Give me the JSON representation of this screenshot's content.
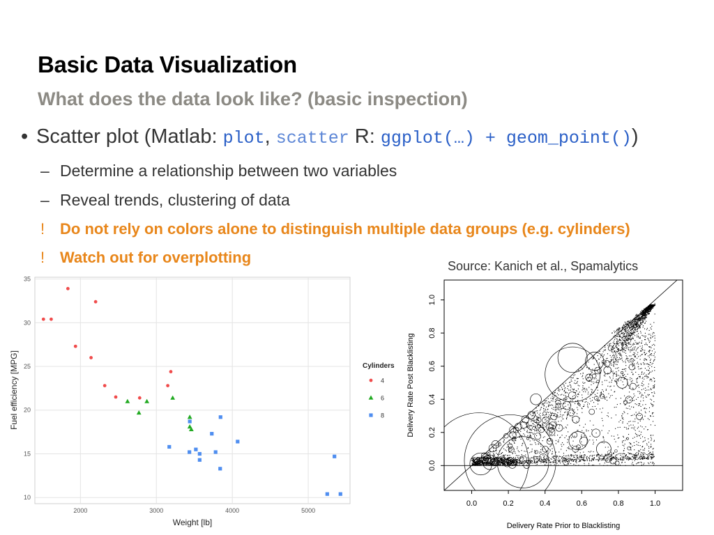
{
  "slide": {
    "title": "Basic Data Visualization",
    "subtitle": "What does the data look like? (basic inspection)",
    "bullet": {
      "prefix": "Scatter plot (Matlab: ",
      "code1": "plot",
      "sep1": ", ",
      "code2": "scatter",
      "mid": " R: ",
      "code3": "ggplot(…) + geom_point()",
      "suffix": ")"
    },
    "subbullets": [
      {
        "mark": "–",
        "text": "Determine a relationship between two variables"
      },
      {
        "mark": "–",
        "text": "Reveal trends, clustering of data"
      },
      {
        "mark": "!",
        "text": "Do not rely on colors alone to distinguish multiple data groups (e.g. cylinders)"
      },
      {
        "mark": "!",
        "text": "Watch out for overplotting"
      }
    ],
    "source": "Source: Kanich et al., Spamalytics"
  },
  "colors": {
    "group4": "#f04b4b",
    "group6": "#22aa22",
    "group8": "#4f8ef0",
    "warning": "#e8861a",
    "code": "#2a5fc7"
  },
  "chart_data": [
    {
      "type": "scatter",
      "title": "",
      "xlabel": "Weight [lb]",
      "ylabel": "Fuel efficiency [MPG]",
      "xlim": [
        1400,
        5550
      ],
      "ylim": [
        9.3,
        35.2
      ],
      "xticks": [
        2000,
        3000,
        4000,
        5000
      ],
      "yticks": [
        10,
        15,
        20,
        25,
        30,
        35
      ],
      "grid": true,
      "legend": {
        "title": "Cylinders",
        "position": "right"
      },
      "series": [
        {
          "name": "4",
          "marker": "circle",
          "points": [
            [
              1513,
              30.4
            ],
            [
              1615,
              30.4
            ],
            [
              1835,
              33.9
            ],
            [
              1935,
              27.3
            ],
            [
              2140,
              26.0
            ],
            [
              2200,
              32.4
            ],
            [
              2320,
              22.8
            ],
            [
              2465,
              21.5
            ],
            [
              2780,
              21.4
            ],
            [
              3150,
              22.8
            ],
            [
              3190,
              24.4
            ]
          ]
        },
        {
          "name": "6",
          "marker": "triangle",
          "points": [
            [
              2620,
              21.0
            ],
            [
              2770,
              19.7
            ],
            [
              2875,
              21.0
            ],
            [
              3215,
              21.4
            ],
            [
              3440,
              18.1
            ],
            [
              3440,
              19.2
            ],
            [
              3460,
              17.8
            ]
          ]
        },
        {
          "name": "8",
          "marker": "square",
          "points": [
            [
              3170,
              15.8
            ],
            [
              3435,
              15.2
            ],
            [
              3440,
              18.7
            ],
            [
              3520,
              15.5
            ],
            [
              3570,
              15.0
            ],
            [
              3570,
              14.3
            ],
            [
              3730,
              17.3
            ],
            [
              3780,
              15.2
            ],
            [
              3840,
              13.3
            ],
            [
              3845,
              19.2
            ],
            [
              4070,
              16.4
            ],
            [
              5250,
              10.4
            ],
            [
              5345,
              14.7
            ],
            [
              5424,
              10.4
            ]
          ]
        }
      ]
    },
    {
      "type": "scatter",
      "title": "",
      "xlabel": "Delivery Rate Prior to Blacklisting",
      "ylabel": "Delivery Rate Post Blacklisting",
      "xlim": [
        -0.15,
        1.15
      ],
      "ylim": [
        -0.15,
        1.12
      ],
      "xticks": [
        "0.0",
        "0.2",
        "0.4",
        "0.6",
        "0.8",
        "1.0"
      ],
      "yticks": [
        "0.0",
        "0.2",
        "0.4",
        "0.6",
        "0.8",
        "1.0"
      ],
      "reference_lines": [
        "y = x",
        "y = 0"
      ],
      "point_description": "dense cloud of small points concentrated near (0,0) and near (1,1), spread between the diagonal and y=0, with hollow circles of varying size",
      "circles": [
        {
          "x": 0.04,
          "y": 0.02,
          "r": 0.27
        },
        {
          "x": 0.21,
          "y": 0.03,
          "r": 0.25
        },
        {
          "x": 0.28,
          "y": 0.02,
          "r": 0.14
        },
        {
          "x": 0.55,
          "y": 0.55,
          "r": 0.15
        },
        {
          "x": 0.55,
          "y": 0.65,
          "r": 0.08
        },
        {
          "x": 0.67,
          "y": 0.63,
          "r": 0.05
        },
        {
          "x": 0.05,
          "y": 0.01,
          "r": 0.06
        },
        {
          "x": 0.1,
          "y": 0.02,
          "r": 0.04
        },
        {
          "x": 0.58,
          "y": 0.15,
          "r": 0.05
        },
        {
          "x": 0.72,
          "y": 0.1,
          "r": 0.04
        },
        {
          "x": 0.35,
          "y": 0.4,
          "r": 0.03
        },
        {
          "x": 0.82,
          "y": 0.5,
          "r": 0.03
        }
      ]
    }
  ]
}
